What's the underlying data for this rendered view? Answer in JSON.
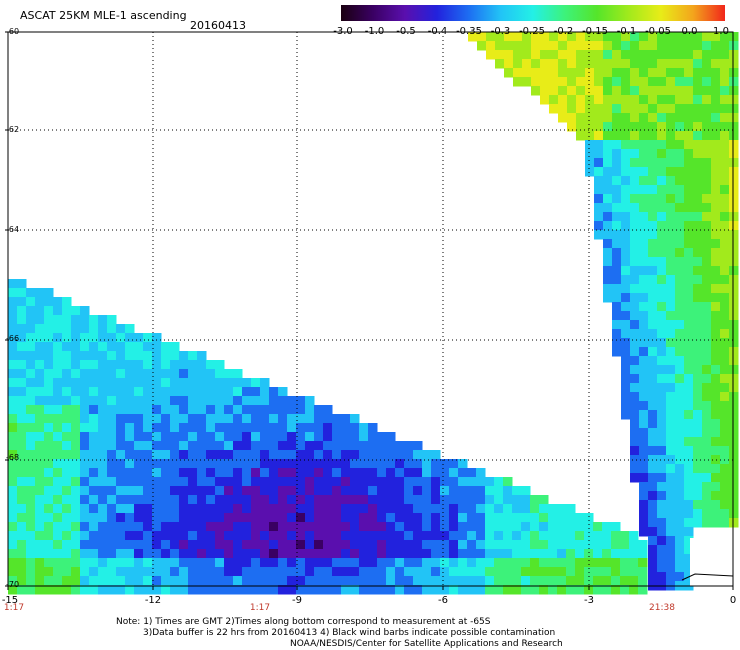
{
  "header": {
    "title": "ASCAT 25KM MLE-1 ascending",
    "date": "20160413"
  },
  "colorbar": {
    "labels": [
      "-3.0",
      "-1.0",
      "-0.5",
      "-0.4",
      "-0.35",
      "-0.3",
      "-0.25",
      "-0.2",
      "-0.15",
      "-0.1",
      "-0.05",
      "0.0",
      "1.0"
    ],
    "colors": [
      "#1a0010",
      "#3a0063",
      "#5a0fae",
      "#2222dd",
      "#1d6ef2",
      "#22c4f6",
      "#23f0e6",
      "#3df27a",
      "#55e52a",
      "#a2ea1c",
      "#e8ec18",
      "#f3a51c",
      "#f1261b"
    ]
  },
  "axes": {
    "y_labels": [
      "-60",
      "-62",
      "-64",
      "-66",
      "-68",
      "-70"
    ],
    "x_labels": [
      "-15",
      "-12",
      "-9",
      "-6",
      "-3",
      "0"
    ],
    "time_labels": [
      "1:17",
      "1:17",
      "21:38"
    ]
  },
  "notes": {
    "line1": "Note: 1) Times are GMT 2)Times along bottom correspond to measurement at -65S",
    "line2": "3)Data buffer is 22 hrs from 20160413 4) Black wind barbs indicate possible contamination",
    "line3": "NOAA/NESDIS/Center for Satellite Applications and Research"
  }
}
